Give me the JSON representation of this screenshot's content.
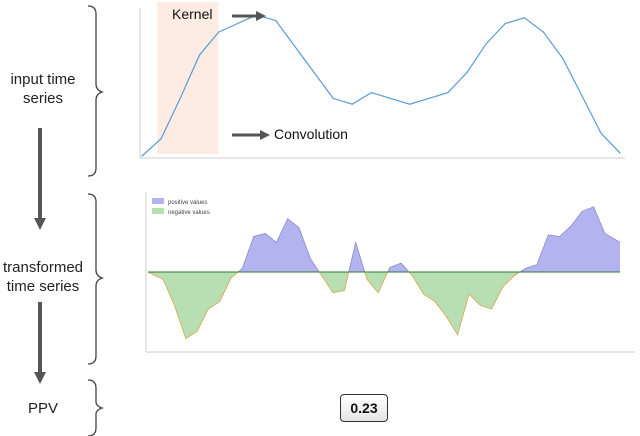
{
  "labels": {
    "input": [
      "input time",
      "series"
    ],
    "transformed": [
      "transformed",
      "time series"
    ],
    "ppv": "PPV",
    "kernel": "Kernel",
    "convolution": "Convolution",
    "ppv_value": "0.23"
  },
  "colors": {
    "input_line": "#5b9bd5",
    "kernel_fill": "#fdece4",
    "positive_fill": "#b3b3ef",
    "negative_fill": "#b8dfb3",
    "arrow": "#555555",
    "zero_line": "#2e7d32"
  },
  "chart_data": [
    {
      "type": "line",
      "series": [
        {
          "x": [
            0,
            10,
            20,
            30,
            40,
            50,
            60,
            70,
            80,
            90,
            100,
            110,
            120,
            130,
            140,
            150,
            160,
            170,
            180,
            190,
            200,
            210,
            220,
            230,
            240,
            250
          ],
          "y": [
            0.0,
            0.12,
            0.4,
            0.7,
            0.86,
            0.92,
            0.98,
            0.94,
            0.76,
            0.58,
            0.4,
            0.36,
            0.44,
            0.4,
            0.36,
            0.4,
            0.44,
            0.58,
            0.78,
            0.92,
            0.96,
            0.86,
            0.68,
            0.42,
            0.16,
            0.02
          ]
        }
      ],
      "xlim": [
        0,
        250
      ],
      "ylim": [
        0,
        1
      ],
      "kernel_span": [
        8,
        40
      ]
    },
    {
      "type": "area",
      "legend": [
        "positive values",
        "negative values"
      ],
      "series": [
        {
          "x": [
            0,
            8,
            14,
            20,
            26,
            32,
            38,
            44,
            50,
            56,
            62,
            68,
            74,
            80,
            86,
            92,
            98,
            104,
            110,
            116,
            122,
            128,
            134,
            140,
            146,
            152,
            158,
            164,
            170,
            176,
            182,
            188,
            194,
            200,
            206,
            212,
            218,
            224,
            230,
            236,
            242,
            250
          ],
          "y": [
            0.0,
            -0.1,
            -0.45,
            -0.9,
            -0.8,
            -0.5,
            -0.4,
            -0.08,
            0.05,
            0.48,
            0.52,
            0.4,
            0.72,
            0.6,
            0.18,
            -0.05,
            -0.28,
            -0.25,
            0.4,
            -0.1,
            -0.28,
            0.06,
            0.12,
            -0.05,
            -0.3,
            -0.4,
            -0.6,
            -0.85,
            -0.3,
            -0.45,
            -0.5,
            -0.2,
            -0.05,
            0.05,
            0.1,
            0.5,
            0.48,
            0.62,
            0.82,
            0.88,
            0.52,
            0.4
          ]
        }
      ],
      "xlim": [
        0,
        250
      ],
      "ylim": [
        -1,
        1
      ]
    }
  ]
}
